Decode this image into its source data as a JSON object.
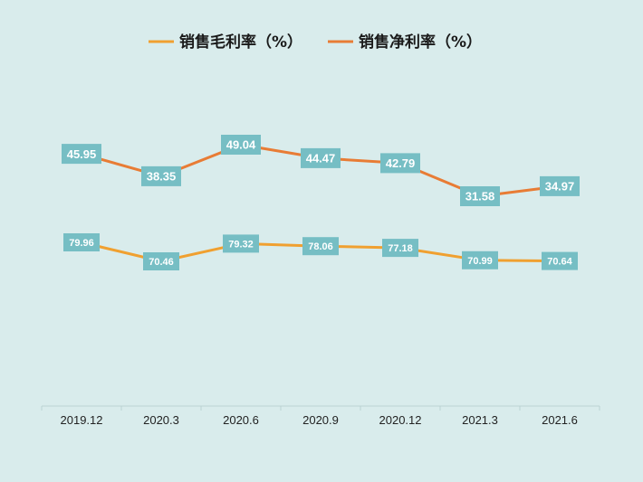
{
  "chart_data": {
    "type": "line",
    "categories": [
      "2019.12",
      "2020.3",
      "2020.6",
      "2020.9",
      "2020.12",
      "2021.3",
      "2021.6"
    ],
    "series": [
      {
        "name": "销售毛利率（%）",
        "values": [
          79.96,
          70.46,
          79.32,
          78.06,
          77.18,
          70.99,
          70.64
        ],
        "labels": [
          "79.96",
          "70.46",
          "79.32",
          "78.06",
          "77.18",
          "70.99",
          "70.64"
        ],
        "color": "#f0a030"
      },
      {
        "name": "销售净利率（%）",
        "values": [
          45.95,
          38.35,
          49.04,
          44.47,
          42.79,
          31.58,
          34.97
        ],
        "labels": [
          "45.95",
          "38.35",
          "49.04",
          "44.47",
          "42.79",
          "31.58",
          "34.97"
        ],
        "color": "#e87c35"
      }
    ],
    "label_box_color": "#76bec4",
    "legend_position": "top-center",
    "grid": false
  }
}
